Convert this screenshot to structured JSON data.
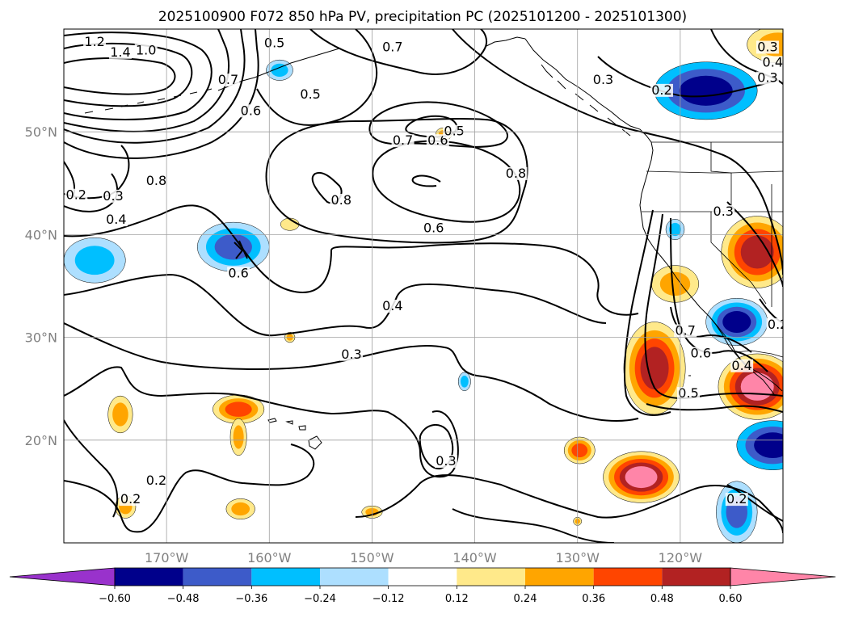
{
  "chart_data": {
    "type": "heatmap",
    "title": "2025100900 F072 850 hPa PV, precipitation PC (2025101200 - 2025101300)",
    "map": {
      "lon_range": [
        -180,
        -110
      ],
      "lat_range": [
        10,
        60
      ],
      "lon_ticks": [
        -170,
        -160,
        -150,
        -140,
        -130,
        -120
      ],
      "lon_tick_labels": [
        "170°W",
        "160°W",
        "150°W",
        "140°W",
        "130°W",
        "120°W"
      ],
      "lat_ticks": [
        20,
        30,
        40,
        50
      ],
      "lat_tick_labels": [
        "20°N",
        "30°N",
        "40°N",
        "50°N"
      ],
      "grid": true
    },
    "colorbar": {
      "bounds": [
        -0.6,
        -0.48,
        -0.36,
        -0.24,
        -0.12,
        0.12,
        0.24,
        0.36,
        0.48,
        0.6
      ],
      "tick_labels": [
        "−0.60",
        "−0.48",
        "−0.36",
        "−0.24",
        "−0.12",
        "0.12",
        "0.24",
        "0.36",
        "0.48",
        "0.60"
      ],
      "colors": [
        "#9932CC",
        "#00008B",
        "#3D5BC9",
        "#00BFFF",
        "#ADDFFF",
        "#FFFFFF",
        "#FFE98A",
        "#FFA500",
        "#FF4500",
        "#B22222",
        "#FF85A8"
      ],
      "extend": "both"
    },
    "contour_levels_labeled": [
      "0.2",
      "0.3",
      "0.4",
      "0.5",
      "0.6",
      "0.7",
      "0.8",
      "1.0",
      "1.2",
      "1.4"
    ],
    "contour_labels": [
      {
        "text": "1.2",
        "lon": -177.0,
        "lat": 58.5
      },
      {
        "text": "1.4",
        "lon": -174.5,
        "lat": 57.5
      },
      {
        "text": "1.0",
        "lon": -172.0,
        "lat": 57.7
      },
      {
        "text": "0.7",
        "lon": -164.0,
        "lat": 54.8
      },
      {
        "text": "0.5",
        "lon": -159.5,
        "lat": 58.4
      },
      {
        "text": "0.6",
        "lon": -161.8,
        "lat": 51.8
      },
      {
        "text": "0.5",
        "lon": -156.0,
        "lat": 53.4
      },
      {
        "text": "0.7",
        "lon": -148.0,
        "lat": 58.0
      },
      {
        "text": "0.8",
        "lon": -171.0,
        "lat": 45.0
      },
      {
        "text": "0.4",
        "lon": -174.9,
        "lat": 41.2
      },
      {
        "text": "0.3",
        "lon": -175.2,
        "lat": 43.5
      },
      {
        "text": "0.2",
        "lon": -178.8,
        "lat": 43.6
      },
      {
        "text": "0.7",
        "lon": -147.0,
        "lat": 48.9
      },
      {
        "text": "0.6",
        "lon": -143.6,
        "lat": 48.9
      },
      {
        "text": "0.5",
        "lon": -142.0,
        "lat": 49.8
      },
      {
        "text": "0.8",
        "lon": -136.0,
        "lat": 45.7
      },
      {
        "text": "0.8",
        "lon": -153.0,
        "lat": 43.1
      },
      {
        "text": "0.6",
        "lon": -144.0,
        "lat": 40.4
      },
      {
        "text": "0.6",
        "lon": -163.0,
        "lat": 36.0
      },
      {
        "text": "0.4",
        "lon": -148.0,
        "lat": 32.8
      },
      {
        "text": "0.3",
        "lon": -152.0,
        "lat": 28.1
      },
      {
        "text": "0.3",
        "lon": -127.5,
        "lat": 54.8
      },
      {
        "text": "0.2",
        "lon": -121.8,
        "lat": 53.8
      },
      {
        "text": "0.3",
        "lon": -111.5,
        "lat": 58.0
      },
      {
        "text": "0.4",
        "lon": -111.0,
        "lat": 56.5
      },
      {
        "text": "0.3",
        "lon": -111.5,
        "lat": 55.0
      },
      {
        "text": "0.3",
        "lon": -115.8,
        "lat": 42.0
      },
      {
        "text": "0.7",
        "lon": -119.5,
        "lat": 30.4
      },
      {
        "text": "0.6",
        "lon": -118.0,
        "lat": 28.2
      },
      {
        "text": "0.5",
        "lon": -119.2,
        "lat": 24.3
      },
      {
        "text": "0.4",
        "lon": -114.0,
        "lat": 27.0
      },
      {
        "text": "0.2",
        "lon": -110.5,
        "lat": 31.0
      },
      {
        "text": "0.2",
        "lon": -114.5,
        "lat": 14.0
      },
      {
        "text": "0.3",
        "lon": -142.8,
        "lat": 17.7
      },
      {
        "text": "0.2",
        "lon": -171.0,
        "lat": 15.8
      },
      {
        "text": "0.2",
        "lon": -173.5,
        "lat": 14.0
      }
    ],
    "precip_anomaly_patches": [
      {
        "lon": -117.5,
        "lat": 54.0,
        "rx": 5,
        "ry": 2.8,
        "levels": [
          "#00BFFF",
          "#3D5BC9",
          "#00008B"
        ]
      },
      {
        "lon": -110.5,
        "lat": 58.5,
        "rx": 3,
        "ry": 1.8,
        "levels": [
          "#FFE98A",
          "#FFA500"
        ]
      },
      {
        "lon": -112.5,
        "lat": 38.3,
        "rx": 3.5,
        "ry": 3.5,
        "levels": [
          "#FFE98A",
          "#FFA500",
          "#FF4500",
          "#B22222"
        ]
      },
      {
        "lon": -114.5,
        "lat": 31.5,
        "rx": 3,
        "ry": 2.3,
        "levels": [
          "#ADDFFF",
          "#00BFFF",
          "#3D5BC9",
          "#00008B"
        ]
      },
      {
        "lon": -112.5,
        "lat": 25.2,
        "rx": 3.8,
        "ry": 3.2,
        "levels": [
          "#FFE98A",
          "#FFA500",
          "#FF4500",
          "#B22222",
          "#FF85A8"
        ]
      },
      {
        "lon": -111.0,
        "lat": 19.5,
        "rx": 3.5,
        "ry": 2.4,
        "levels": [
          "#00BFFF",
          "#3D5BC9",
          "#00008B"
        ]
      },
      {
        "lon": -122.5,
        "lat": 27.0,
        "rx": 3.0,
        "ry": 4.5,
        "levels": [
          "#FFE98A",
          "#FFA500",
          "#FF4500",
          "#B22222"
        ]
      },
      {
        "lon": -123.8,
        "lat": 16.4,
        "rx": 3.7,
        "ry": 2.5,
        "levels": [
          "#FFE98A",
          "#FFA500",
          "#FF4500",
          "#B22222",
          "#FF85A8"
        ]
      },
      {
        "lon": -129.8,
        "lat": 19.0,
        "rx": 1.5,
        "ry": 1.3,
        "levels": [
          "#FFE98A",
          "#FFA500",
          "#FF4500"
        ]
      },
      {
        "lon": -114.5,
        "lat": 13.0,
        "rx": 2.0,
        "ry": 3.0,
        "levels": [
          "#ADDFFF",
          "#00BFFF",
          "#3D5BC9"
        ]
      },
      {
        "lon": -120.5,
        "lat": 35.2,
        "rx": 2.3,
        "ry": 1.8,
        "levels": [
          "#FFE98A",
          "#FFA500"
        ]
      },
      {
        "lon": -120.5,
        "lat": 40.5,
        "rx": 0.9,
        "ry": 1.0,
        "levels": [
          "#ADDFFF",
          "#00BFFF"
        ]
      },
      {
        "lon": -163.5,
        "lat": 38.8,
        "rx": 3.5,
        "ry": 2.4,
        "levels": [
          "#ADDFFF",
          "#00BFFF",
          "#3D5BC9"
        ]
      },
      {
        "lon": -177.0,
        "lat": 37.5,
        "rx": 3.0,
        "ry": 2.2,
        "levels": [
          "#ADDFFF",
          "#00BFFF"
        ]
      },
      {
        "lon": -159.0,
        "lat": 56.0,
        "rx": 1.3,
        "ry": 1.0,
        "levels": [
          "#ADDFFF",
          "#00BFFF"
        ]
      },
      {
        "lon": -174.5,
        "lat": 22.5,
        "rx": 1.2,
        "ry": 1.8,
        "levels": [
          "#FFE98A",
          "#FFA500"
        ]
      },
      {
        "lon": -163.0,
        "lat": 23.0,
        "rx": 2.5,
        "ry": 1.4,
        "levels": [
          "#FFE98A",
          "#FFA500",
          "#FF4500"
        ]
      },
      {
        "lon": -163.0,
        "lat": 20.3,
        "rx": 0.8,
        "ry": 1.8,
        "levels": [
          "#FFE98A",
          "#FFA500"
        ]
      },
      {
        "lon": -162.8,
        "lat": 13.3,
        "rx": 1.4,
        "ry": 1.0,
        "levels": [
          "#FFE98A",
          "#FFA500"
        ]
      },
      {
        "lon": -174.0,
        "lat": 13.5,
        "rx": 1.0,
        "ry": 1.1,
        "levels": [
          "#FFE98A",
          "#FFA500"
        ]
      },
      {
        "lon": -150.0,
        "lat": 13.0,
        "rx": 1.0,
        "ry": 0.6,
        "levels": [
          "#FFE98A",
          "#FFA500"
        ]
      },
      {
        "lon": -141.0,
        "lat": 25.7,
        "rx": 0.6,
        "ry": 0.9,
        "levels": [
          "#ADDFFF",
          "#00BFFF"
        ]
      },
      {
        "lon": -158.0,
        "lat": 41.0,
        "rx": 0.9,
        "ry": 0.6,
        "levels": [
          "#FFE98A"
        ]
      },
      {
        "lon": -143.0,
        "lat": 49.8,
        "rx": 0.8,
        "ry": 0.6,
        "levels": [
          "#FFE98A",
          "#FFA500"
        ]
      },
      {
        "lon": -158.0,
        "lat": 30.0,
        "rx": 0.5,
        "ry": 0.5,
        "levels": [
          "#FFE98A",
          "#FFA500"
        ]
      },
      {
        "lon": -130.0,
        "lat": 12.1,
        "rx": 0.4,
        "ry": 0.4,
        "levels": [
          "#FFE98A",
          "#FFA500"
        ]
      }
    ]
  }
}
